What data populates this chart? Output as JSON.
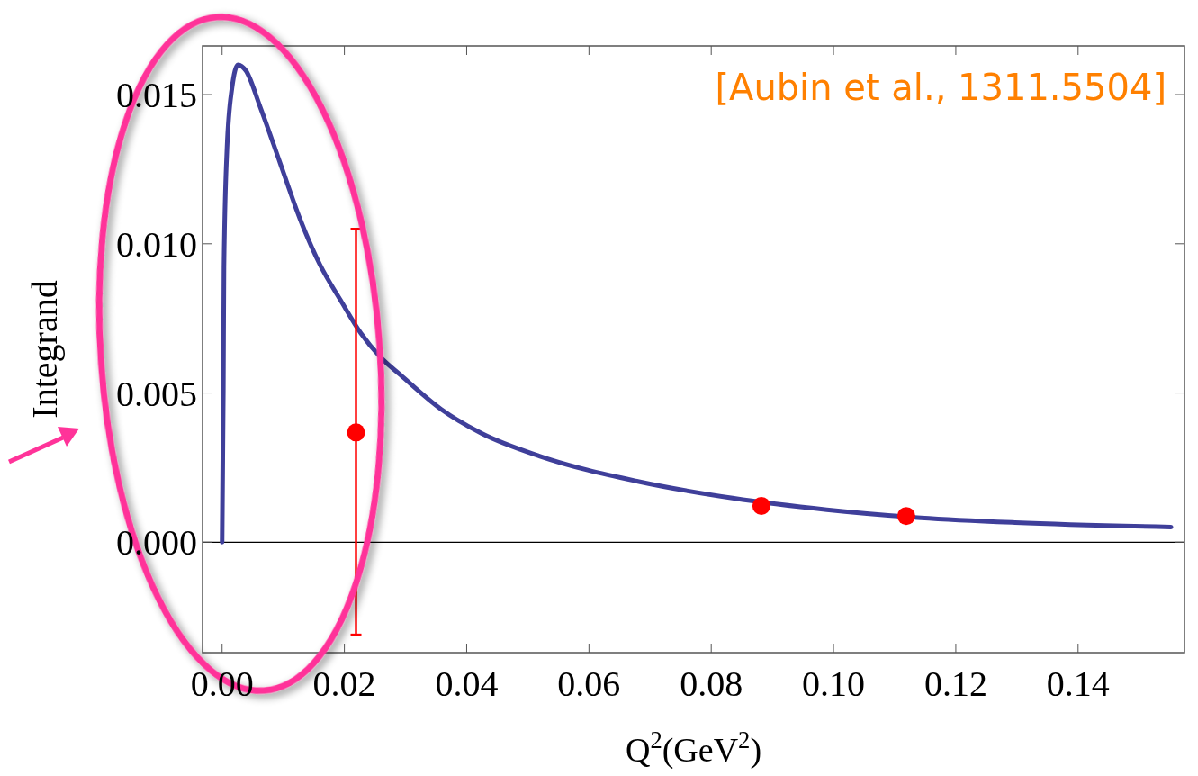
{
  "chart_data": {
    "type": "line",
    "xlabel": "Q$^{2}$(GeV$^{2}$)",
    "ylabel": "Integrand",
    "annotations": [
      "[Aubin et al., 1311.5504]"
    ],
    "xlim": [
      -0.0032,
      0.1574
    ],
    "ylim": [
      -0.0037,
      0.01663
    ],
    "xticks": [
      {
        "value": 0,
        "label": "0.00"
      },
      0.02,
      0.04,
      0.06,
      {
        "value": 0.08,
        "label": "0.08"
      },
      {
        "value": 0.1,
        "label": "0.10"
      },
      0.12,
      0.14
    ],
    "yticks": [
      {
        "value": 0,
        "label": "0.000"
      },
      0.005,
      {
        "value": 0.01,
        "label": "0.010"
      },
      0.015
    ],
    "ref_lines": [
      {
        "axis": "y",
        "value": 0,
        "color": "#000000"
      }
    ],
    "grid": false,
    "series": [
      {
        "color": "#3f3f9a",
        "marker": "none",
        "x": [
          0,
          0.0002,
          0.0003,
          0.0008,
          0.0016,
          0.0026,
          0.0039,
          0.0062,
          0.0095,
          0.0128,
          0.016,
          0.0194,
          0.0227,
          0.0259,
          0.0292,
          0.0358,
          0.0424,
          0.052,
          0.068,
          0.0835,
          0.0989,
          0.1143,
          0.1297,
          0.1552
        ],
        "values": [
          0,
          0.0051,
          0.0092,
          0.0132,
          0.0152,
          0.016,
          0.0158,
          0.0146,
          0.0127,
          0.0108,
          0.0093,
          0.0081,
          0.007,
          0.0062,
          0.0056,
          0.00446,
          0.00365,
          0.00288,
          0.00204,
          0.00148,
          0.00109,
          0.00082,
          0.00066,
          0.00051
        ]
      },
      {
        "type": "scatter",
        "color": "#ff0000",
        "marker": "circle",
        "x": [
          0.0219,
          0.0882,
          0.1119
        ],
        "values": [
          0.00368,
          0.00122,
          0.00088
        ],
        "errors": [
          [
            -0.0031,
            0.0105
          ],
          null,
          null
        ]
      }
    ]
  }
}
